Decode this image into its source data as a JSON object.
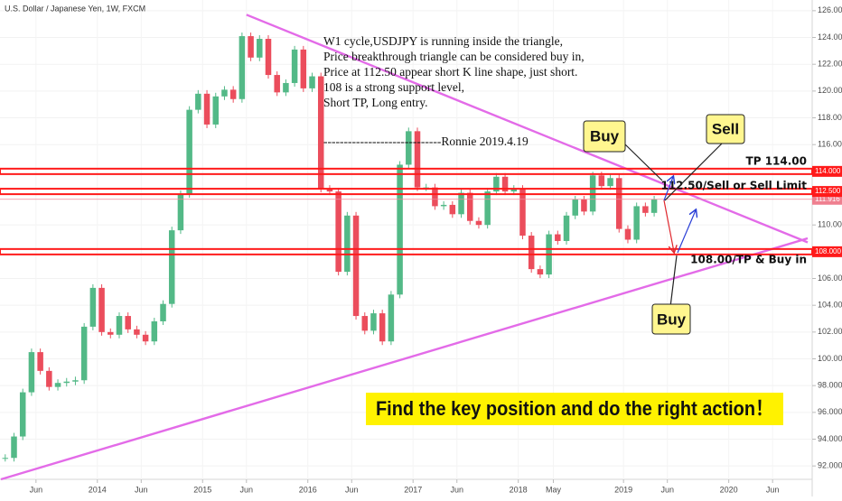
{
  "chart_data": {
    "type": "candlestick",
    "title": "U.S. Dollar / Japanese Yen, 1W, FXCM",
    "up_color": "#53b987",
    "down_color": "#eb4d5c",
    "x": [
      "2013-02",
      "2013-03",
      "2013-04",
      "2013-05",
      "2013-06",
      "2013-07",
      "2013-08",
      "2013-09",
      "2013-10",
      "2013-11",
      "2013-12",
      "2014-01",
      "2014-02",
      "2014-03",
      "2014-04",
      "2014-05",
      "2014-06",
      "2014-07",
      "2014-08",
      "2014-09",
      "2014-10",
      "2014-11",
      "2014-12",
      "2015-01",
      "2015-02",
      "2015-03",
      "2015-04",
      "2015-05",
      "2015-06",
      "2015-07",
      "2015-08",
      "2015-09",
      "2015-10",
      "2015-11",
      "2015-12",
      "2016-01",
      "2016-02",
      "2016-03",
      "2016-04",
      "2016-05",
      "2016-06",
      "2016-07",
      "2016-08",
      "2016-09",
      "2016-10",
      "2016-11",
      "2016-12",
      "2017-01",
      "2017-02",
      "2017-03",
      "2017-04",
      "2017-05",
      "2017-06",
      "2017-07",
      "2017-08",
      "2017-09",
      "2017-10",
      "2017-11",
      "2017-12",
      "2018-01",
      "2018-02",
      "2018-03",
      "2018-04",
      "2018-05",
      "2018-06",
      "2018-07",
      "2018-08",
      "2018-09",
      "2018-10",
      "2018-11",
      "2018-12",
      "2019-01",
      "2019-02",
      "2019-03",
      "2019-04"
    ],
    "values": [
      92.6,
      94.2,
      97.5,
      100.5,
      99.1,
      97.9,
      98.2,
      98.3,
      98.4,
      102.4,
      105.3,
      102.0,
      101.8,
      103.2,
      102.2,
      101.8,
      101.3,
      102.8,
      104.1,
      109.6,
      112.3,
      118.6,
      119.8,
      117.5,
      119.6,
      120.1,
      119.4,
      124.1,
      122.5,
      123.9,
      121.2,
      119.9,
      120.6,
      123.1,
      120.2,
      121.1,
      112.7,
      112.5,
      106.5,
      110.7,
      103.2,
      102.1,
      103.4,
      101.3,
      104.8,
      114.5,
      117.0,
      112.8,
      112.8,
      111.4,
      111.5,
      110.8,
      112.4,
      110.3,
      110.0,
      112.5,
      113.6,
      112.5,
      112.7,
      109.2,
      106.7,
      106.3,
      109.3,
      108.8,
      110.7,
      111.9,
      111.0,
      113.7,
      112.9,
      113.5,
      109.7,
      108.9,
      111.4,
      110.9,
      111.9
    ],
    "xlim": [
      "2013-02",
      "2020-10"
    ],
    "xticks": [
      {
        "value": "2013-06",
        "label": "Jun"
      },
      {
        "value": "2014-01",
        "label": "2014"
      },
      {
        "value": "2014-06",
        "label": "Jun"
      },
      {
        "value": "2015-01",
        "label": "2015"
      },
      {
        "value": "2015-06",
        "label": "Jun"
      },
      {
        "value": "2016-01",
        "label": "2016"
      },
      {
        "value": "2016-06",
        "label": "Jun"
      },
      {
        "value": "2017-01",
        "label": "2017"
      },
      {
        "value": "2017-06",
        "label": "Jun"
      },
      {
        "value": "2018-01",
        "label": "2018"
      },
      {
        "value": "2018-05",
        "label": "May"
      },
      {
        "value": "2019-01",
        "label": "2019"
      },
      {
        "value": "2019-06",
        "label": "Jun"
      },
      {
        "value": "2020-01",
        "label": "2020"
      },
      {
        "value": "2020-06",
        "label": "Jun"
      }
    ],
    "ylim": [
      91,
      126.8
    ],
    "yticks": [
      {
        "value": 92,
        "label": "92.000"
      },
      {
        "value": 94,
        "label": "94.000"
      },
      {
        "value": 96,
        "label": "96.000"
      },
      {
        "value": 98,
        "label": "98.000"
      },
      {
        "value": 100,
        "label": "100.000"
      },
      {
        "value": 102,
        "label": "102.000"
      },
      {
        "value": 104,
        "label": "104.000"
      },
      {
        "value": 106,
        "label": "106.000"
      },
      {
        "value": 110,
        "label": "110.000"
      },
      {
        "value": 116,
        "label": "116.000"
      },
      {
        "value": 118,
        "label": "118.000"
      },
      {
        "value": 120,
        "label": "120.000"
      },
      {
        "value": 122,
        "label": "122.000"
      },
      {
        "value": 124,
        "label": "124.000"
      },
      {
        "value": 126,
        "label": "126.000"
      }
    ],
    "levels": [
      {
        "value": 114,
        "label": "TP 114.00",
        "tag": "114.000"
      },
      {
        "value": 112.5,
        "label": "112.50/Sell or Sell Limit",
        "tag": "112.500"
      },
      {
        "value": 108,
        "label": "108.00/TP & Buy in",
        "tag": "108.000"
      }
    ],
    "last_price": 111.916,
    "trendlines": [
      {
        "from": [
          "2015-06",
          125.7
        ],
        "to": [
          "2020-10",
          108.7
        ]
      },
      {
        "from": [
          "2013-02",
          91.0
        ],
        "to": [
          "2020-10",
          109.0
        ]
      }
    ],
    "trendline_color": "#e36be8",
    "note_lines": [
      "W1 cycle,USDJPY is running inside the triangle,",
      "Price breakthrough triangle can be considered buy in,",
      "Price at 112.50 appear short K line shape, just short.",
      "108 is a strong support level,",
      "Short TP, Long entry."
    ],
    "signature": "-----------------------------Ronnie 2019.4.19",
    "callouts": [
      "Buy",
      "Sell",
      "Buy"
    ],
    "banner": "Find the key position and do the right action！"
  }
}
